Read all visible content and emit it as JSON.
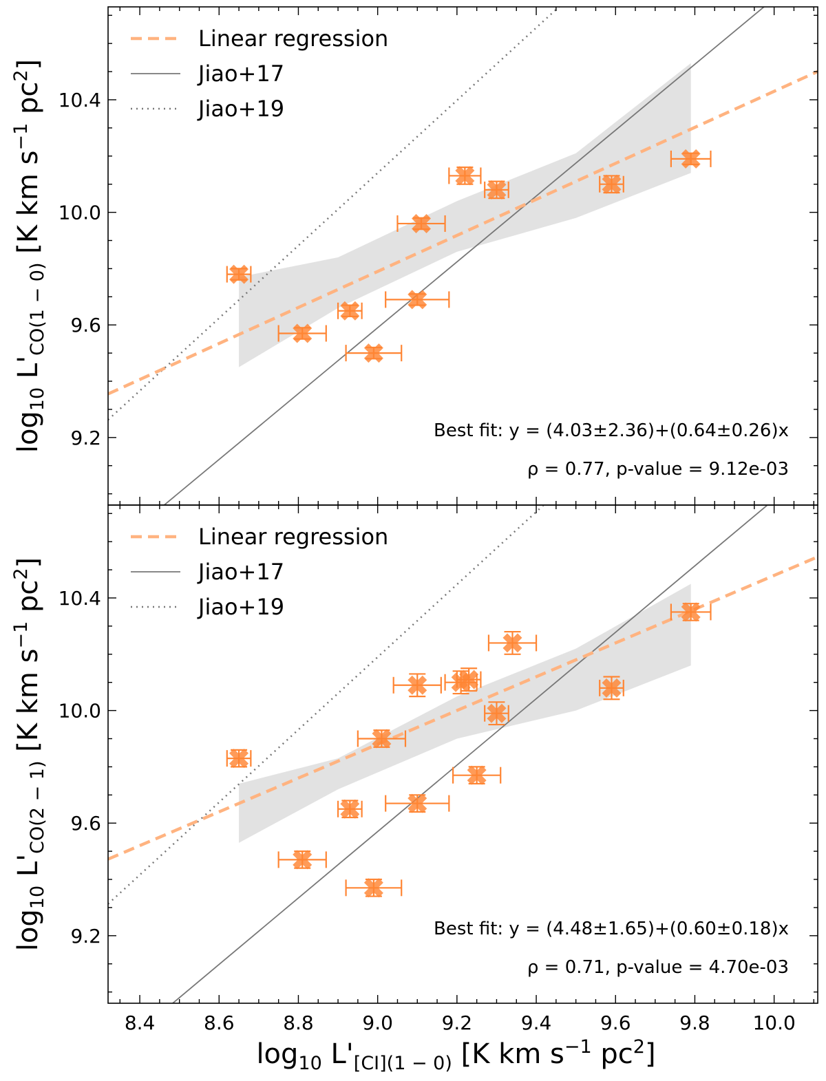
{
  "colors": {
    "marker": "#ff8533",
    "errorbar": "#ff8533",
    "regression": "#ffb380",
    "band": "#d8d8d8",
    "jiao17": "#777777",
    "jiao19": "#777777"
  },
  "chart_data": [
    {
      "type": "scatter",
      "panel": "top",
      "xlim": [
        8.32,
        10.11
      ],
      "ylim": [
        8.96,
        10.73
      ],
      "xticks": [
        8.4,
        8.6,
        8.8,
        9.0,
        9.2,
        9.4,
        9.6,
        9.8,
        10.0
      ],
      "yticks": [
        9.2,
        9.6,
        10.0,
        10.4
      ],
      "ytick_labels": [
        "9.2",
        "9.6",
        "10.0",
        "10.4"
      ],
      "ylabel": {
        "main": "log",
        "sub1": "10",
        "mid": " L'",
        "sub2": "CO(1 − 0)",
        "unit": " [K km s",
        "sup1": "−1",
        "unit2": " pc",
        "sup2": "2",
        "end": "]"
      },
      "legend": [
        {
          "label": "Linear regression",
          "style": "dashed"
        },
        {
          "label": "Jiao+17",
          "style": "solid"
        },
        {
          "label": "Jiao+19",
          "style": "dotted"
        }
      ],
      "points": [
        {
          "x": 8.65,
          "y": 9.78,
          "xerr": 0.03,
          "yerr": 0.02
        },
        {
          "x": 8.81,
          "y": 9.57,
          "xerr": 0.06,
          "yerr": 0.02
        },
        {
          "x": 8.93,
          "y": 9.65,
          "xerr": 0.03,
          "yerr": 0.02
        },
        {
          "x": 8.99,
          "y": 9.5,
          "xerr": 0.07,
          "yerr": 0.02
        },
        {
          "x": 9.1,
          "y": 9.69,
          "xerr": 0.08,
          "yerr": 0.02
        },
        {
          "x": 9.11,
          "y": 9.96,
          "xerr": 0.06,
          "yerr": 0.02
        },
        {
          "x": 9.22,
          "y": 10.13,
          "xerr": 0.04,
          "yerr": 0.03
        },
        {
          "x": 9.3,
          "y": 10.08,
          "xerr": 0.03,
          "yerr": 0.03
        },
        {
          "x": 9.59,
          "y": 10.1,
          "xerr": 0.03,
          "yerr": 0.03
        },
        {
          "x": 9.79,
          "y": 10.19,
          "xerr": 0.05,
          "yerr": 0.02
        }
      ],
      "fit": {
        "intercept": 4.03,
        "slope": 0.64
      },
      "band": {
        "x": [
          8.65,
          8.9,
          9.2,
          9.5,
          9.79
        ],
        "lower": [
          9.45,
          9.66,
          9.86,
          9.98,
          10.14
        ],
        "upper": [
          9.77,
          9.84,
          10.04,
          10.21,
          10.53
        ]
      },
      "jiao17": {
        "intercept": -0.94,
        "slope": 1.17
      },
      "jiao19": {
        "intercept": -1.47,
        "slope": 1.29
      },
      "annotation_fit": "Best fit: y = (4.03±2.36)+(0.64±0.26)x",
      "annotation_stat": "ρ = 0.77, p-value = 9.12e-03"
    },
    {
      "type": "scatter",
      "panel": "bottom",
      "xlim": [
        8.32,
        10.11
      ],
      "ylim": [
        8.96,
        10.73
      ],
      "xticks": [
        8.4,
        8.6,
        8.8,
        9.0,
        9.2,
        9.4,
        9.6,
        9.8,
        10.0
      ],
      "xtick_labels": [
        "8.4",
        "8.6",
        "8.8",
        "9.0",
        "9.2",
        "9.4",
        "9.6",
        "9.8",
        "10.0"
      ],
      "yticks": [
        9.2,
        9.6,
        10.0,
        10.4
      ],
      "ytick_labels": [
        "9.2",
        "9.6",
        "10.0",
        "10.4"
      ],
      "ylabel": {
        "main": "log",
        "sub1": "10",
        "mid": " L'",
        "sub2": "CO(2 − 1)",
        "unit": " [K km s",
        "sup1": "−1",
        "unit2": " pc",
        "sup2": "2",
        "end": "]"
      },
      "xlabel": {
        "main": "log",
        "sub1": "10",
        "mid": " L'",
        "sub2": "[CI](1 − 0)",
        "unit": " [K km s",
        "sup1": "−1",
        "unit2": " pc",
        "sup2": "2",
        "end": "]"
      },
      "legend": [
        {
          "label": "Linear regression",
          "style": "dashed"
        },
        {
          "label": "Jiao+17",
          "style": "solid"
        },
        {
          "label": "Jiao+19",
          "style": "dotted"
        }
      ],
      "points": [
        {
          "x": 8.65,
          "y": 9.83,
          "xerr": 0.03,
          "yerr": 0.03
        },
        {
          "x": 8.81,
          "y": 9.47,
          "xerr": 0.06,
          "yerr": 0.03
        },
        {
          "x": 8.93,
          "y": 9.65,
          "xerr": 0.03,
          "yerr": 0.03
        },
        {
          "x": 8.99,
          "y": 9.37,
          "xerr": 0.07,
          "yerr": 0.03
        },
        {
          "x": 9.01,
          "y": 9.9,
          "xerr": 0.06,
          "yerr": 0.03
        },
        {
          "x": 9.1,
          "y": 9.67,
          "xerr": 0.08,
          "yerr": 0.03
        },
        {
          "x": 9.1,
          "y": 10.09,
          "xerr": 0.06,
          "yerr": 0.04
        },
        {
          "x": 9.21,
          "y": 10.1,
          "xerr": 0.04,
          "yerr": 0.04
        },
        {
          "x": 9.23,
          "y": 10.11,
          "xerr": 0.03,
          "yerr": 0.04
        },
        {
          "x": 9.25,
          "y": 9.77,
          "xerr": 0.06,
          "yerr": 0.03
        },
        {
          "x": 9.3,
          "y": 9.99,
          "xerr": 0.03,
          "yerr": 0.04
        },
        {
          "x": 9.34,
          "y": 10.24,
          "xerr": 0.06,
          "yerr": 0.04
        },
        {
          "x": 9.59,
          "y": 10.08,
          "xerr": 0.03,
          "yerr": 0.04
        },
        {
          "x": 9.79,
          "y": 10.35,
          "xerr": 0.05,
          "yerr": 0.03
        }
      ],
      "fit": {
        "intercept": 4.48,
        "slope": 0.6
      },
      "band": {
        "x": [
          8.65,
          8.9,
          9.2,
          9.5,
          9.79
        ],
        "lower": [
          9.53,
          9.72,
          9.9,
          10.0,
          10.16
        ],
        "upper": [
          9.74,
          9.83,
          10.05,
          10.22,
          10.45
        ]
      },
      "jiao17": {
        "intercept": -1.05,
        "slope": 1.18
      },
      "jiao19": {
        "intercept": -1.42,
        "slope": 1.29
      },
      "annotation_fit": "Best fit: y = (4.48±1.65)+(0.60±0.18)x",
      "annotation_stat": "ρ = 0.71, p-value = 4.70e-03"
    }
  ]
}
